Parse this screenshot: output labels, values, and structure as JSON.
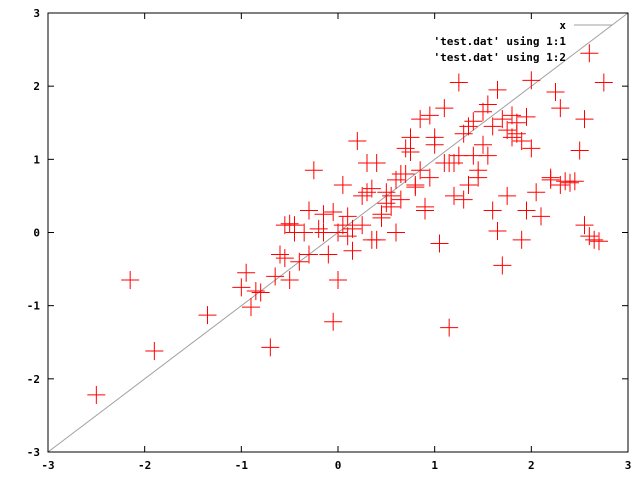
{
  "chart_data": {
    "type": "scatter",
    "title": "",
    "xlabel": "",
    "ylabel": "",
    "xlim": [
      -3,
      3
    ],
    "ylim": [
      -3,
      3
    ],
    "grid": false,
    "legend_position": "top-right",
    "x_ticks": [
      "-3",
      "-2",
      "-1",
      "0",
      "1",
      "2",
      "3"
    ],
    "y_ticks": [
      "-3",
      "-2",
      "-1",
      "0",
      "1",
      "2",
      "3"
    ],
    "series": [
      {
        "name": "x",
        "kind": "line",
        "color": "#a0a0a0",
        "x": [
          -3,
          3
        ],
        "y": [
          -3,
          3
        ]
      },
      {
        "name": "'test.dat' using 1:1",
        "kind": "points",
        "color": "#000000",
        "x": [],
        "y": []
      },
      {
        "name": "'test.dat' using 1:2",
        "kind": "points",
        "color": "#ff0000",
        "x": [
          -2.5,
          -2.15,
          -1.9,
          -1.35,
          -1.0,
          -0.95,
          -0.9,
          -0.85,
          -0.8,
          -0.7,
          -0.65,
          -0.6,
          -0.55,
          -0.5,
          -0.5,
          -0.45,
          -0.4,
          -0.3,
          -0.25,
          -0.2,
          -0.15,
          -0.1,
          -0.05,
          0.0,
          0.0,
          0.05,
          0.1,
          0.15,
          0.2,
          0.25,
          0.3,
          0.35,
          0.4,
          0.45,
          0.5,
          0.55,
          0.6,
          0.65,
          0.7,
          0.75,
          0.8,
          0.85,
          0.9,
          0.95,
          1.0,
          1.05,
          1.1,
          1.15,
          1.2,
          1.25,
          1.3,
          1.35,
          1.4,
          1.45,
          1.5,
          1.55,
          1.6,
          1.65,
          1.7,
          1.75,
          1.8,
          1.85,
          1.9,
          1.95,
          2.0,
          2.05,
          2.1,
          2.2,
          2.25,
          2.3,
          2.35,
          2.5,
          2.55,
          2.6,
          2.65,
          2.7,
          2.75,
          -0.05,
          0.3,
          0.6,
          1.1,
          1.65,
          1.75,
          1.9,
          2.2,
          2.55,
          0.8,
          0.4,
          -0.6,
          0.15,
          1.15,
          1.3,
          1.5,
          0.95,
          0.7,
          -0.35,
          -0.15,
          0.05,
          0.45,
          0.75,
          1.2,
          1.45,
          1.6,
          1.8,
          1.95,
          2.3,
          2.6,
          0.55,
          0.9,
          1.35,
          -0.55,
          -0.45,
          0.25,
          0.5,
          0.85,
          1.0,
          1.4,
          1.55,
          1.7,
          1.85,
          -0.3,
          0.1,
          0.35,
          0.65,
          1.25,
          2.0,
          2.4,
          2.45
        ],
        "y": [
          -2.22,
          -0.65,
          -1.62,
          -1.13,
          -0.75,
          -0.55,
          -1.02,
          -0.8,
          -0.82,
          -1.57,
          -0.6,
          -0.3,
          -0.35,
          -0.65,
          0.12,
          0.1,
          -0.4,
          0.3,
          0.85,
          0.05,
          0.25,
          -0.3,
          -1.22,
          0.0,
          -0.65,
          0.65,
          0.22,
          -0.25,
          1.25,
          0.5,
          0.55,
          -0.1,
          0.95,
          0.2,
          0.55,
          0.35,
          0.72,
          0.45,
          1.15,
          1.3,
          0.62,
          1.55,
          0.3,
          1.6,
          1.3,
          -0.15,
          1.7,
          -1.3,
          0.5,
          2.05,
          1.35,
          0.65,
          1.52,
          0.85,
          1.65,
          1.75,
          1.45,
          1.95,
          -0.45,
          1.4,
          1.3,
          1.5,
          -0.1,
          1.58,
          2.08,
          0.55,
          0.22,
          0.72,
          1.92,
          1.7,
          0.7,
          1.12,
          0.1,
          2.45,
          -0.1,
          -0.12,
          2.05,
          0.28,
          0.95,
          0.0,
          0.95,
          0.02,
          0.5,
          1.25,
          0.75,
          1.55,
          0.65,
          -0.1,
          -0.3,
          0.05,
          0.95,
          0.45,
          1.2,
          0.75,
          0.8,
          0.0,
          0.0,
          0.1,
          0.25,
          1.1,
          0.95,
          0.75,
          0.3,
          1.6,
          0.3,
          0.65,
          -0.05,
          0.5,
          0.35,
          1.45,
          0.1,
          0.0,
          0.1,
          0.4,
          0.85,
          1.2,
          1.05,
          1.05,
          1.55,
          1.35,
          -0.3,
          -0.05,
          0.6,
          0.8,
          1.05,
          1.15,
          0.68,
          0.7
        ]
      }
    ]
  }
}
